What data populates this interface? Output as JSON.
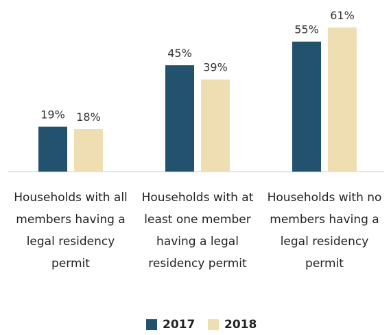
{
  "chart_data": {
    "type": "bar",
    "categories": [
      "Households with all members having a legal residency permit",
      "Households with at least one member having a legal residency permit",
      "Households with no members having a legal residency permit"
    ],
    "series": [
      {
        "name": "2017",
        "color": "#23526e",
        "values": [
          19,
          45,
          55
        ],
        "value_labels": [
          "19%",
          "45%",
          "55%"
        ]
      },
      {
        "name": "2018",
        "color": "#efdeb1",
        "values": [
          18,
          39,
          61
        ],
        "value_labels": [
          "18%",
          "39%",
          "61%"
        ]
      }
    ],
    "legend": "bottom"
  }
}
